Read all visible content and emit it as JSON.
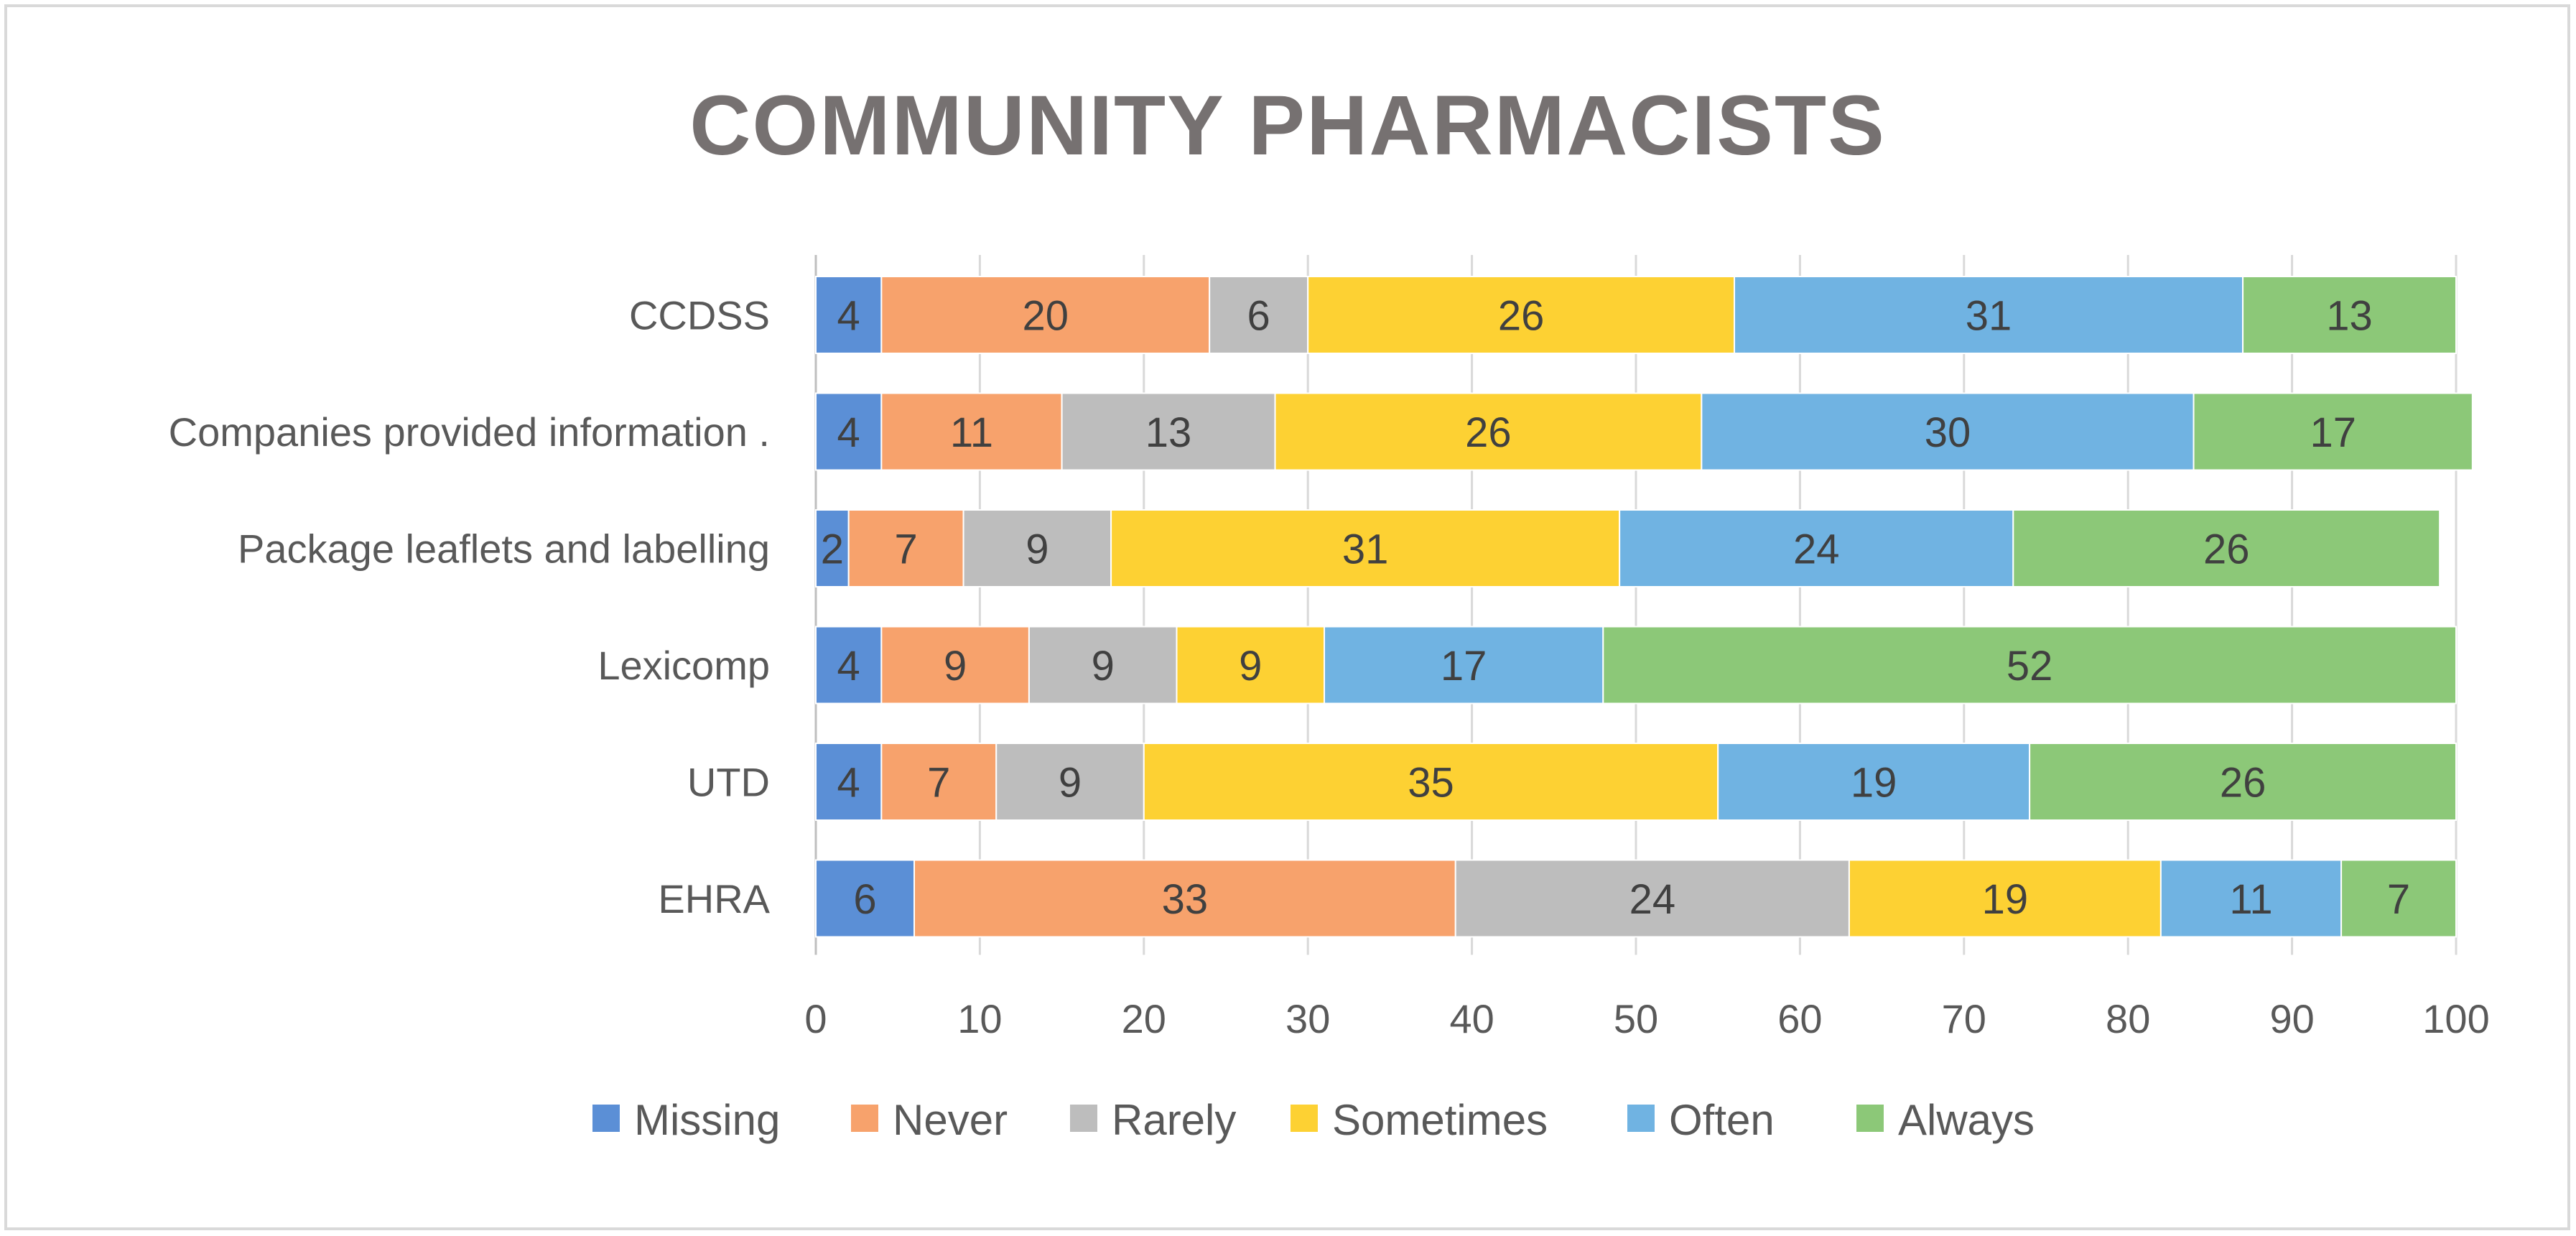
{
  "chart_data": {
    "type": "bar",
    "orientation": "horizontal",
    "stacked": true,
    "title": "COMMUNITY PHARMACISTS",
    "categories": [
      "CCDSS",
      "Companies provided information .",
      "Package leaflets and labelling",
      "Lexicomp",
      "UTD",
      "EHRA"
    ],
    "series": [
      {
        "name": "Missing",
        "color": "#5b8fd6",
        "values": [
          4,
          4,
          2,
          4,
          4,
          6
        ]
      },
      {
        "name": "Never",
        "color": "#f7a26c",
        "values": [
          20,
          11,
          7,
          9,
          7,
          33
        ]
      },
      {
        "name": "Rarely",
        "color": "#bdbdbd",
        "values": [
          6,
          13,
          9,
          9,
          9,
          24
        ]
      },
      {
        "name": "Sometimes",
        "color": "#fdd133",
        "values": [
          26,
          26,
          31,
          9,
          35,
          19
        ]
      },
      {
        "name": "Often",
        "color": "#70b3e2",
        "values": [
          31,
          30,
          24,
          17,
          19,
          11
        ]
      },
      {
        "name": "Always",
        "color": "#8cc878",
        "values": [
          13,
          17,
          26,
          52,
          26,
          7
        ]
      }
    ],
    "xlim": [
      0,
      100
    ],
    "xticks": [
      0,
      10,
      20,
      30,
      40,
      50,
      60,
      70,
      80,
      90,
      100
    ],
    "grid": true,
    "legend": "bottom",
    "xlabel": "",
    "ylabel": ""
  }
}
